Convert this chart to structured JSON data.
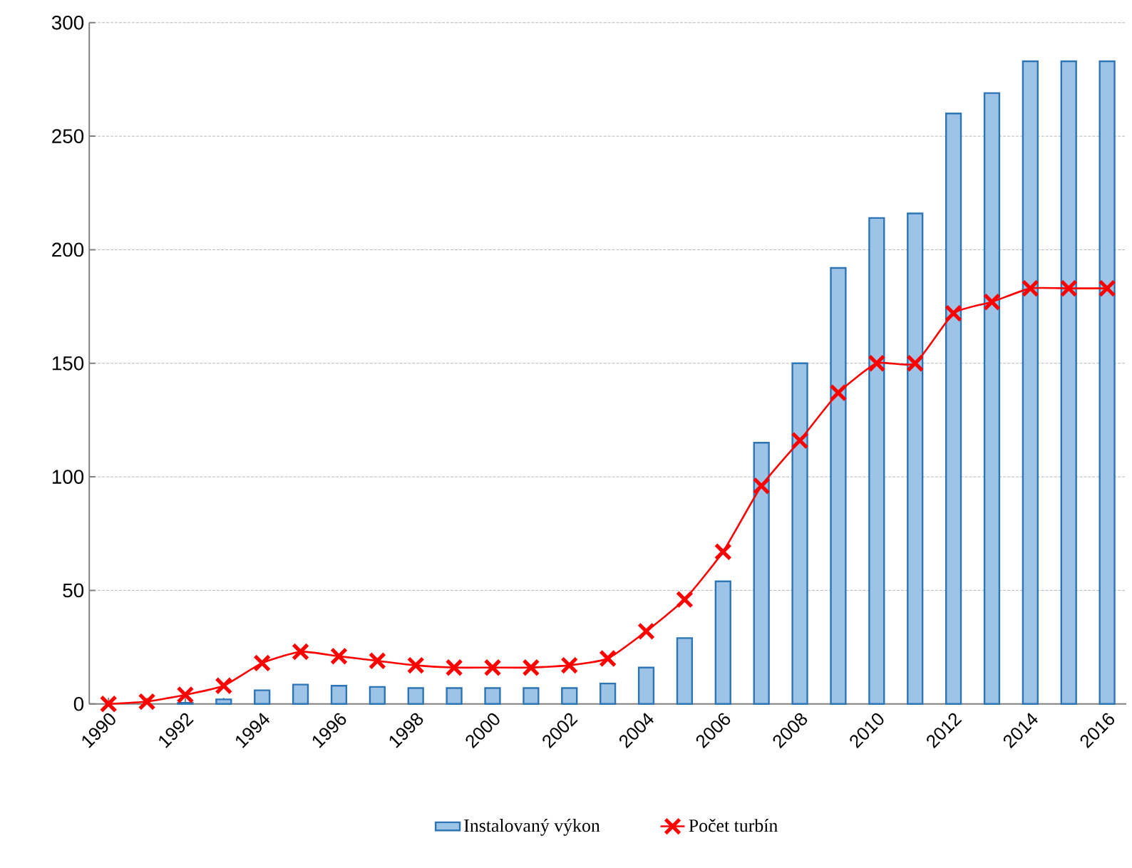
{
  "chart_data": {
    "type": "bar",
    "categories": [
      "1990",
      null,
      "1992",
      null,
      "1994",
      null,
      "1996",
      null,
      "1998",
      null,
      "2000",
      null,
      "2002",
      null,
      "2004",
      null,
      "2006",
      null,
      "2008",
      null,
      "2010",
      null,
      "2012",
      null,
      "2014",
      null,
      "2016"
    ],
    "series": [
      {
        "name": "Instalovaný výkon",
        "color": "#9dc3e6",
        "values": [
          null,
          null,
          0.5,
          2,
          6,
          8.5,
          8,
          7.5,
          7,
          7,
          7,
          7,
          7,
          9,
          16,
          29,
          54,
          115,
          150,
          192,
          214,
          216,
          260,
          269,
          283,
          283,
          283
        ]
      },
      {
        "name": "Počet turbín",
        "type": "line",
        "color": "#ff0000",
        "marker": "cross",
        "line_style": "solid",
        "values": [
          0,
          1,
          4,
          8,
          18,
          23,
          21,
          19,
          17,
          16,
          16,
          16,
          17,
          20,
          32,
          46,
          67,
          96,
          116,
          137,
          150,
          150,
          172,
          177,
          183,
          183,
          183
        ]
      }
    ],
    "ylim": [
      0,
      300
    ],
    "yticks": [
      0,
      50,
      100,
      150,
      200,
      250,
      300
    ],
    "grid": "y",
    "legend": "bottom"
  }
}
